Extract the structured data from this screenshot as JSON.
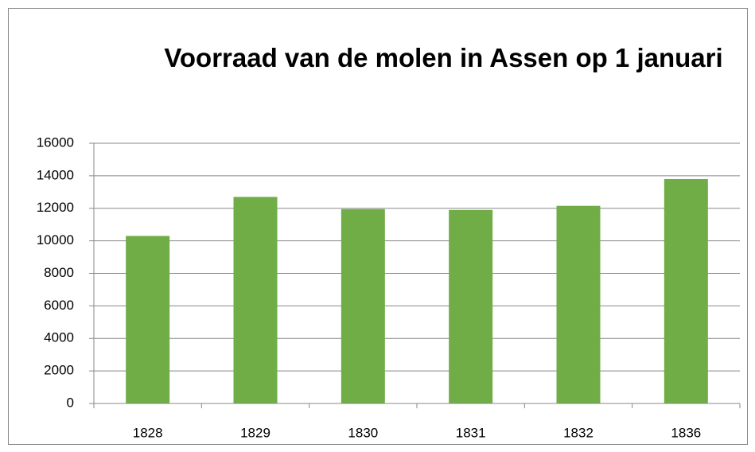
{
  "chart_data": {
    "type": "bar",
    "title": "Voorraad van de molen in Assen op 1 januari",
    "categories": [
      "1828",
      "1829",
      "1830",
      "1831",
      "1832",
      "1836"
    ],
    "values": [
      10300,
      12700,
      11950,
      11900,
      12150,
      13800
    ],
    "color": "#70ad47",
    "ylim": [
      0,
      16000
    ],
    "yticks": [
      0,
      2000,
      4000,
      6000,
      8000,
      10000,
      12000,
      14000,
      16000
    ],
    "grid": true
  }
}
